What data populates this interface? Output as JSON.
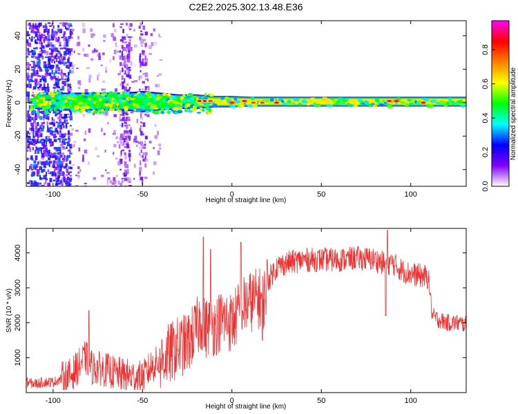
{
  "title": "C2E2.2025.302.13.48.E36",
  "chart_data": [
    {
      "type": "heatmap",
      "name": "spectrogram",
      "xlabel": "Height of straight line (km)",
      "ylabel": "Frequency (Hz)",
      "xlim": [
        -115,
        131
      ],
      "ylim": [
        -50,
        49
      ],
      "xticks": [
        -100,
        -50,
        0,
        50,
        100
      ],
      "yticks": [
        -40,
        -20,
        0,
        20,
        40
      ],
      "colorbar": {
        "label": "Normalized spectral amplitude",
        "range": [
          0,
          0.97
        ],
        "ticks": [
          0.0,
          0.2,
          0.4,
          0.6,
          0.8
        ],
        "tick_labels": [
          "0.0",
          "0.2",
          "0.4",
          "0.6",
          "0.8"
        ],
        "colormap": [
          "#ffffff",
          "#8000ff",
          "#0000ff",
          "#00ffff",
          "#00ff00",
          "#ffff00",
          "#ff8000",
          "#ff0000",
          "#ff00ff"
        ]
      },
      "bands": [
        {
          "x": -110,
          "halfwidth": 4,
          "amplitude": 0.45
        },
        {
          "x": -100,
          "halfwidth": 5,
          "amplitude": 0.45
        },
        {
          "x": -90,
          "halfwidth": 5,
          "amplitude": 0.45
        },
        {
          "x": -80,
          "halfwidth": 5,
          "amplitude": 0.4
        },
        {
          "x": -70,
          "halfwidth": 5,
          "amplitude": 0.4
        },
        {
          "x": -60,
          "halfwidth": 5,
          "amplitude": 0.45
        },
        {
          "x": -50,
          "halfwidth": 6,
          "amplitude": 0.5
        },
        {
          "x": -40,
          "halfwidth": 5,
          "amplitude": 0.5
        },
        {
          "x": -30,
          "halfwidth": 4,
          "amplitude": 0.5
        },
        {
          "x": -20,
          "halfwidth": 4,
          "amplitude": 0.55
        },
        {
          "x": -10,
          "halfwidth": 3,
          "amplitude": 0.55
        },
        {
          "x": 0,
          "halfwidth": 3,
          "amplitude": 0.6
        },
        {
          "x": 10,
          "halfwidth": 2.5,
          "amplitude": 0.6
        },
        {
          "x": 20,
          "halfwidth": 2.5,
          "amplitude": 0.6
        },
        {
          "x": 30,
          "halfwidth": 2.5,
          "amplitude": 0.6
        },
        {
          "x": 40,
          "halfwidth": 2.5,
          "amplitude": 0.6
        },
        {
          "x": 50,
          "halfwidth": 2.5,
          "amplitude": 0.6
        },
        {
          "x": 60,
          "halfwidth": 2.5,
          "amplitude": 0.6
        },
        {
          "x": 70,
          "halfwidth": 2.5,
          "amplitude": 0.6
        },
        {
          "x": 80,
          "halfwidth": 2.5,
          "amplitude": 0.6
        },
        {
          "x": 90,
          "halfwidth": 2.5,
          "amplitude": 0.65
        },
        {
          "x": 100,
          "halfwidth": 2.5,
          "amplitude": 0.6
        },
        {
          "x": 110,
          "halfwidth": 2.5,
          "amplitude": 0.6
        },
        {
          "x": 120,
          "halfwidth": 2.5,
          "amplitude": 0.6
        },
        {
          "x": 131,
          "halfwidth": 2.5,
          "amplitude": 0.6
        }
      ],
      "peaks": [
        {
          "x": -18,
          "y": 1,
          "amplitude": 0.85
        },
        {
          "x": -15,
          "y": 1,
          "amplitude": 0.85
        },
        {
          "x": -12,
          "y": 1,
          "amplitude": 0.8
        },
        {
          "x": 0,
          "y": 0,
          "amplitude": 0.9
        },
        {
          "x": 7,
          "y": 1,
          "amplitude": 0.85
        },
        {
          "x": 12,
          "y": 0,
          "amplitude": 0.8
        },
        {
          "x": 17,
          "y": 0,
          "amplitude": 0.8
        },
        {
          "x": 25,
          "y": 0,
          "amplitude": 0.85
        },
        {
          "x": 88,
          "y": 1,
          "amplitude": 0.85
        },
        {
          "x": 92,
          "y": 1,
          "amplitude": 0.9
        },
        {
          "x": 107,
          "y": 0,
          "amplitude": 0.85
        }
      ],
      "noise_regions": [
        {
          "x": [
            -115,
            -90
          ],
          "density": 0.55,
          "amplitude": 0.2
        },
        {
          "x": [
            -63,
            -57
          ],
          "density": 0.4,
          "amplitude": 0.12
        },
        {
          "x": [
            -52,
            -48
          ],
          "density": 0.35,
          "amplitude": 0.12
        },
        {
          "x": [
            -90,
            -40
          ],
          "density": 0.08,
          "amplitude": 0.08
        }
      ]
    },
    {
      "type": "line",
      "name": "snr",
      "xlabel": "Height of straight line (km)",
      "ylabel": "SNR (10 * v/v)",
      "xlim": [
        -115,
        131
      ],
      "ylim": [
        0,
        4700
      ],
      "xticks": [
        -100,
        -50,
        0,
        50,
        100
      ],
      "yticks": [
        1000,
        2000,
        3000,
        4000
      ],
      "series": [
        {
          "name": "SNR",
          "color": "#f03030",
          "x": [
            -115,
            -110,
            -105,
            -100,
            -95,
            -90,
            -85,
            -82,
            -80,
            -78,
            -75,
            -70,
            -65,
            -60,
            -55,
            -50,
            -45,
            -40,
            -35,
            -30,
            -25,
            -20,
            -17,
            -15,
            -12,
            -10,
            -5,
            0,
            5,
            10,
            15,
            18,
            20,
            25,
            30,
            40,
            50,
            60,
            70,
            80,
            85,
            90,
            95,
            100,
            105,
            110,
            112,
            115,
            120,
            125,
            131
          ],
          "values": [
            300,
            250,
            300,
            300,
            400,
            500,
            800,
            1000,
            900,
            700,
            700,
            650,
            550,
            500,
            450,
            420,
            750,
            900,
            1100,
            1300,
            1400,
            1800,
            2100,
            1800,
            2000,
            1900,
            2100,
            2000,
            2400,
            2600,
            2700,
            2700,
            3200,
            3600,
            3700,
            3800,
            3800,
            3800,
            3850,
            3800,
            3700,
            3700,
            3500,
            3400,
            3350,
            3300,
            2200,
            2100,
            2000,
            2000,
            1950
          ],
          "spikes": [
            {
              "x": -80,
              "value": 2350
            },
            {
              "x": -16,
              "value": 4450
            },
            {
              "x": -12,
              "value": 4100
            },
            {
              "x": 5,
              "value": 4300
            },
            {
              "x": 87,
              "value": 4650
            }
          ],
          "dips": [
            {
              "x": 17,
              "value": 1500
            },
            {
              "x": 86,
              "value": 2200
            }
          ]
        }
      ]
    }
  ]
}
